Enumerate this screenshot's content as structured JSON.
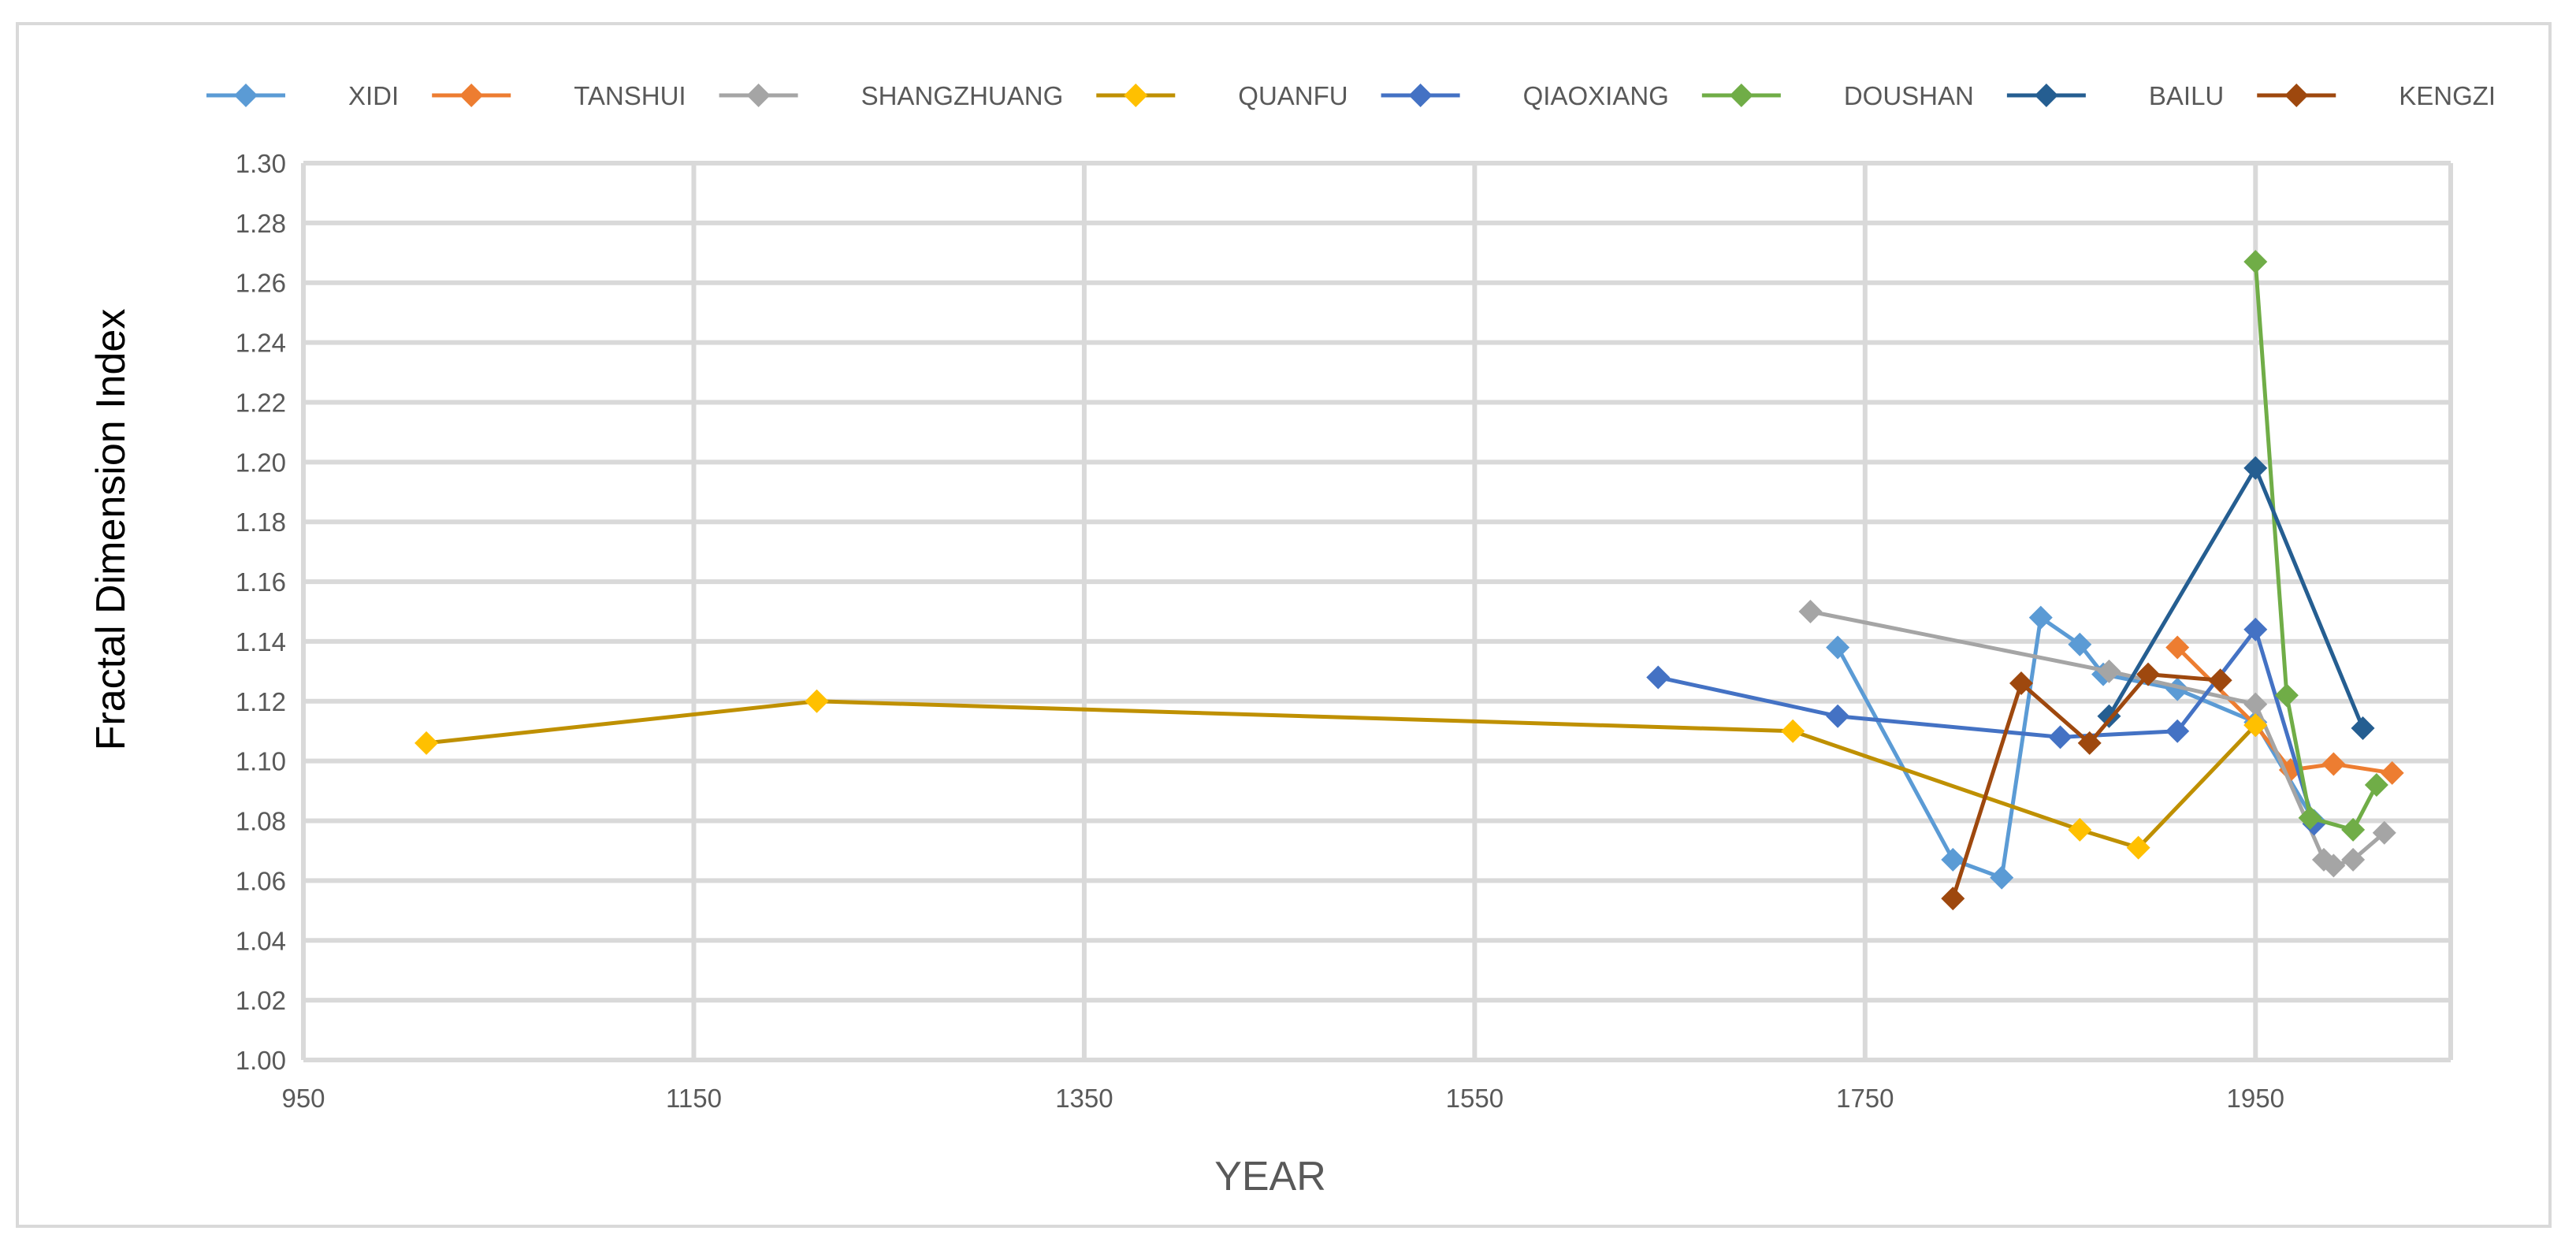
{
  "chart_data": {
    "type": "line",
    "title": "",
    "xlabel": "YEAR",
    "ylabel": "Fractal Dimension Index",
    "xlim": [
      950,
      2050
    ],
    "ylim": [
      1.0,
      1.3
    ],
    "x_ticks": [
      950,
      1150,
      1350,
      1550,
      1750,
      1950
    ],
    "y_ticks": [
      1.0,
      1.02,
      1.04,
      1.06,
      1.08,
      1.1,
      1.12,
      1.14,
      1.16,
      1.18,
      1.2,
      1.22,
      1.24,
      1.26,
      1.28,
      1.3
    ],
    "x_tick_labels": [
      "950",
      "1150",
      "1350",
      "1550",
      "1750",
      "1950"
    ],
    "y_tick_labels": [
      "1.00",
      "1.02",
      "1.04",
      "1.06",
      "1.08",
      "1.10",
      "1.12",
      "1.14",
      "1.16",
      "1.18",
      "1.20",
      "1.22",
      "1.24",
      "1.26",
      "1.28",
      "1.30"
    ],
    "grid": true,
    "legend_position": "top",
    "marker": "diamond",
    "series": [
      {
        "name": "XIDI",
        "color": "#5b9bd5",
        "points": [
          [
            1736,
            1.138
          ],
          [
            1795,
            1.067
          ],
          [
            1820,
            1.061
          ],
          [
            1840,
            1.148
          ],
          [
            1860,
            1.139
          ],
          [
            1872,
            1.129
          ],
          [
            1910,
            1.124
          ],
          [
            1950,
            1.113
          ],
          [
            1980,
            1.08
          ]
        ]
      },
      {
        "name": "TANSHUI",
        "color": "#ed7d31",
        "points": [
          [
            1910,
            1.138
          ],
          [
            1950,
            1.112
          ],
          [
            1968,
            1.097
          ],
          [
            1990,
            1.099
          ],
          [
            2020,
            1.096
          ]
        ]
      },
      {
        "name": "SHANGZHUANG",
        "color": "#a5a5a5",
        "points": [
          [
            1722,
            1.15
          ],
          [
            1875,
            1.13
          ],
          [
            1950,
            1.119
          ],
          [
            1985,
            1.067
          ],
          [
            1990,
            1.065
          ],
          [
            2000,
            1.067
          ],
          [
            2016,
            1.076
          ]
        ]
      },
      {
        "name": "QUANFU",
        "color": "#ffc000",
        "line_color": "#bf9000",
        "points": [
          [
            1013,
            1.106
          ],
          [
            1213,
            1.12
          ],
          [
            1713,
            1.11
          ],
          [
            1860,
            1.077
          ],
          [
            1890,
            1.071
          ],
          [
            1950,
            1.112
          ]
        ]
      },
      {
        "name": "QIAOXIANG",
        "color": "#4472c4",
        "points": [
          [
            1644,
            1.128
          ],
          [
            1736,
            1.115
          ],
          [
            1850,
            1.108
          ],
          [
            1910,
            1.11
          ],
          [
            1950,
            1.144
          ],
          [
            1980,
            1.079
          ]
        ]
      },
      {
        "name": "DOUSHAN",
        "color": "#70ad47",
        "points": [
          [
            1950,
            1.267
          ],
          [
            1966,
            1.122
          ],
          [
            1978,
            1.081
          ],
          [
            2000,
            1.077
          ],
          [
            2012,
            1.092
          ]
        ]
      },
      {
        "name": "BAILU",
        "color": "#255e91",
        "points": [
          [
            1875,
            1.115
          ],
          [
            1950,
            1.198
          ],
          [
            2005,
            1.111
          ]
        ]
      },
      {
        "name": "KENGZI",
        "color": "#9e480e",
        "points": [
          [
            1795,
            1.054
          ],
          [
            1830,
            1.126
          ],
          [
            1865,
            1.106
          ],
          [
            1895,
            1.129
          ],
          [
            1932,
            1.127
          ]
        ]
      }
    ]
  }
}
